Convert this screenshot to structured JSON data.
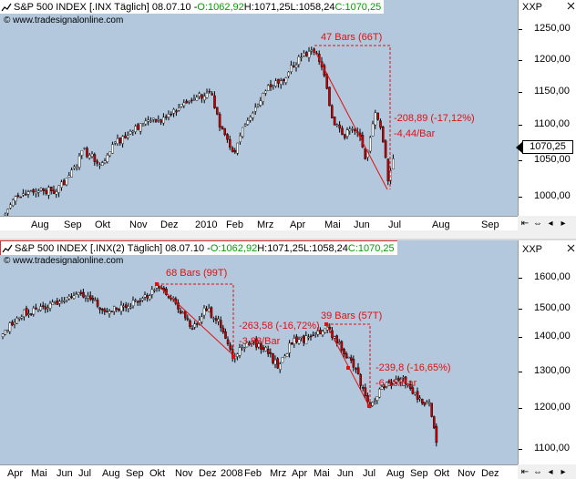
{
  "top": {
    "icon": "chart-line-icon",
    "title_prefix": "S&P 500 INDEX [.INX  Täglich] 08.07.10 - ",
    "o": "O:1062,92",
    "h": " H:1071,25",
    "l": " L:1058,24",
    "c": " C:1070,25",
    "watermark": "© www.tradesignalonline.com",
    "xxp": "XXP",
    "current_price": "1070,25",
    "y_ticks": [
      "1250,00",
      "1200,00",
      "1150,00",
      "1100,00",
      "1050,00",
      "1000,00"
    ],
    "x_labels": [
      "Aug",
      "Sep",
      "Okt",
      "Nov",
      "Dez",
      "2010",
      "Feb",
      "Mrz",
      "Apr",
      "Mai",
      "Jun",
      "Jul",
      "Aug",
      "Sep"
    ],
    "annotations": {
      "bars": "47 Bars (66T)",
      "delta": "-208,89 (-17,12%)",
      "rate": "-4,44/Bar"
    }
  },
  "bottom": {
    "icon": "chart-line-icon",
    "title_prefix": "S&P 500 INDEX [.INX(2)  Täglich] 08.07.10 - ",
    "o": "O:1062,92",
    "h": " H:1071,25",
    "l": " L:1058,24",
    "c": " C:1070,25",
    "watermark": "© www.tradesignalonline.com",
    "xxp": "XXP",
    "y_ticks": [
      "1600,00",
      "1500,00",
      "1400,00",
      "1300,00",
      "1200,00",
      "1100,00"
    ],
    "x_labels": [
      "Apr",
      "Mai",
      "Jun",
      "Jul",
      "Aug",
      "Sep",
      "Okt",
      "Nov",
      "Dez",
      "2008",
      "Feb",
      "Mrz",
      "Apr",
      "Mai",
      "Jun",
      "Jul",
      "Aug",
      "Sep",
      "Okt",
      "Nov",
      "Dez"
    ],
    "annotations": {
      "bars1": "68 Bars (99T)",
      "delta1": "-263,58 (-16,72%)",
      "rate1": "-3,88/Bar",
      "bars2": "39 Bars (57T)",
      "delta2": "-239,8 (-16,65%)",
      "rate2": "-6,15/Bar"
    }
  },
  "colors": {
    "plot_bg": "#b3c8dd",
    "annotation": "#e01010",
    "ohlc_green": "#00a000",
    "candle_up": "#ffffff",
    "candle_down": "#c00000"
  }
}
